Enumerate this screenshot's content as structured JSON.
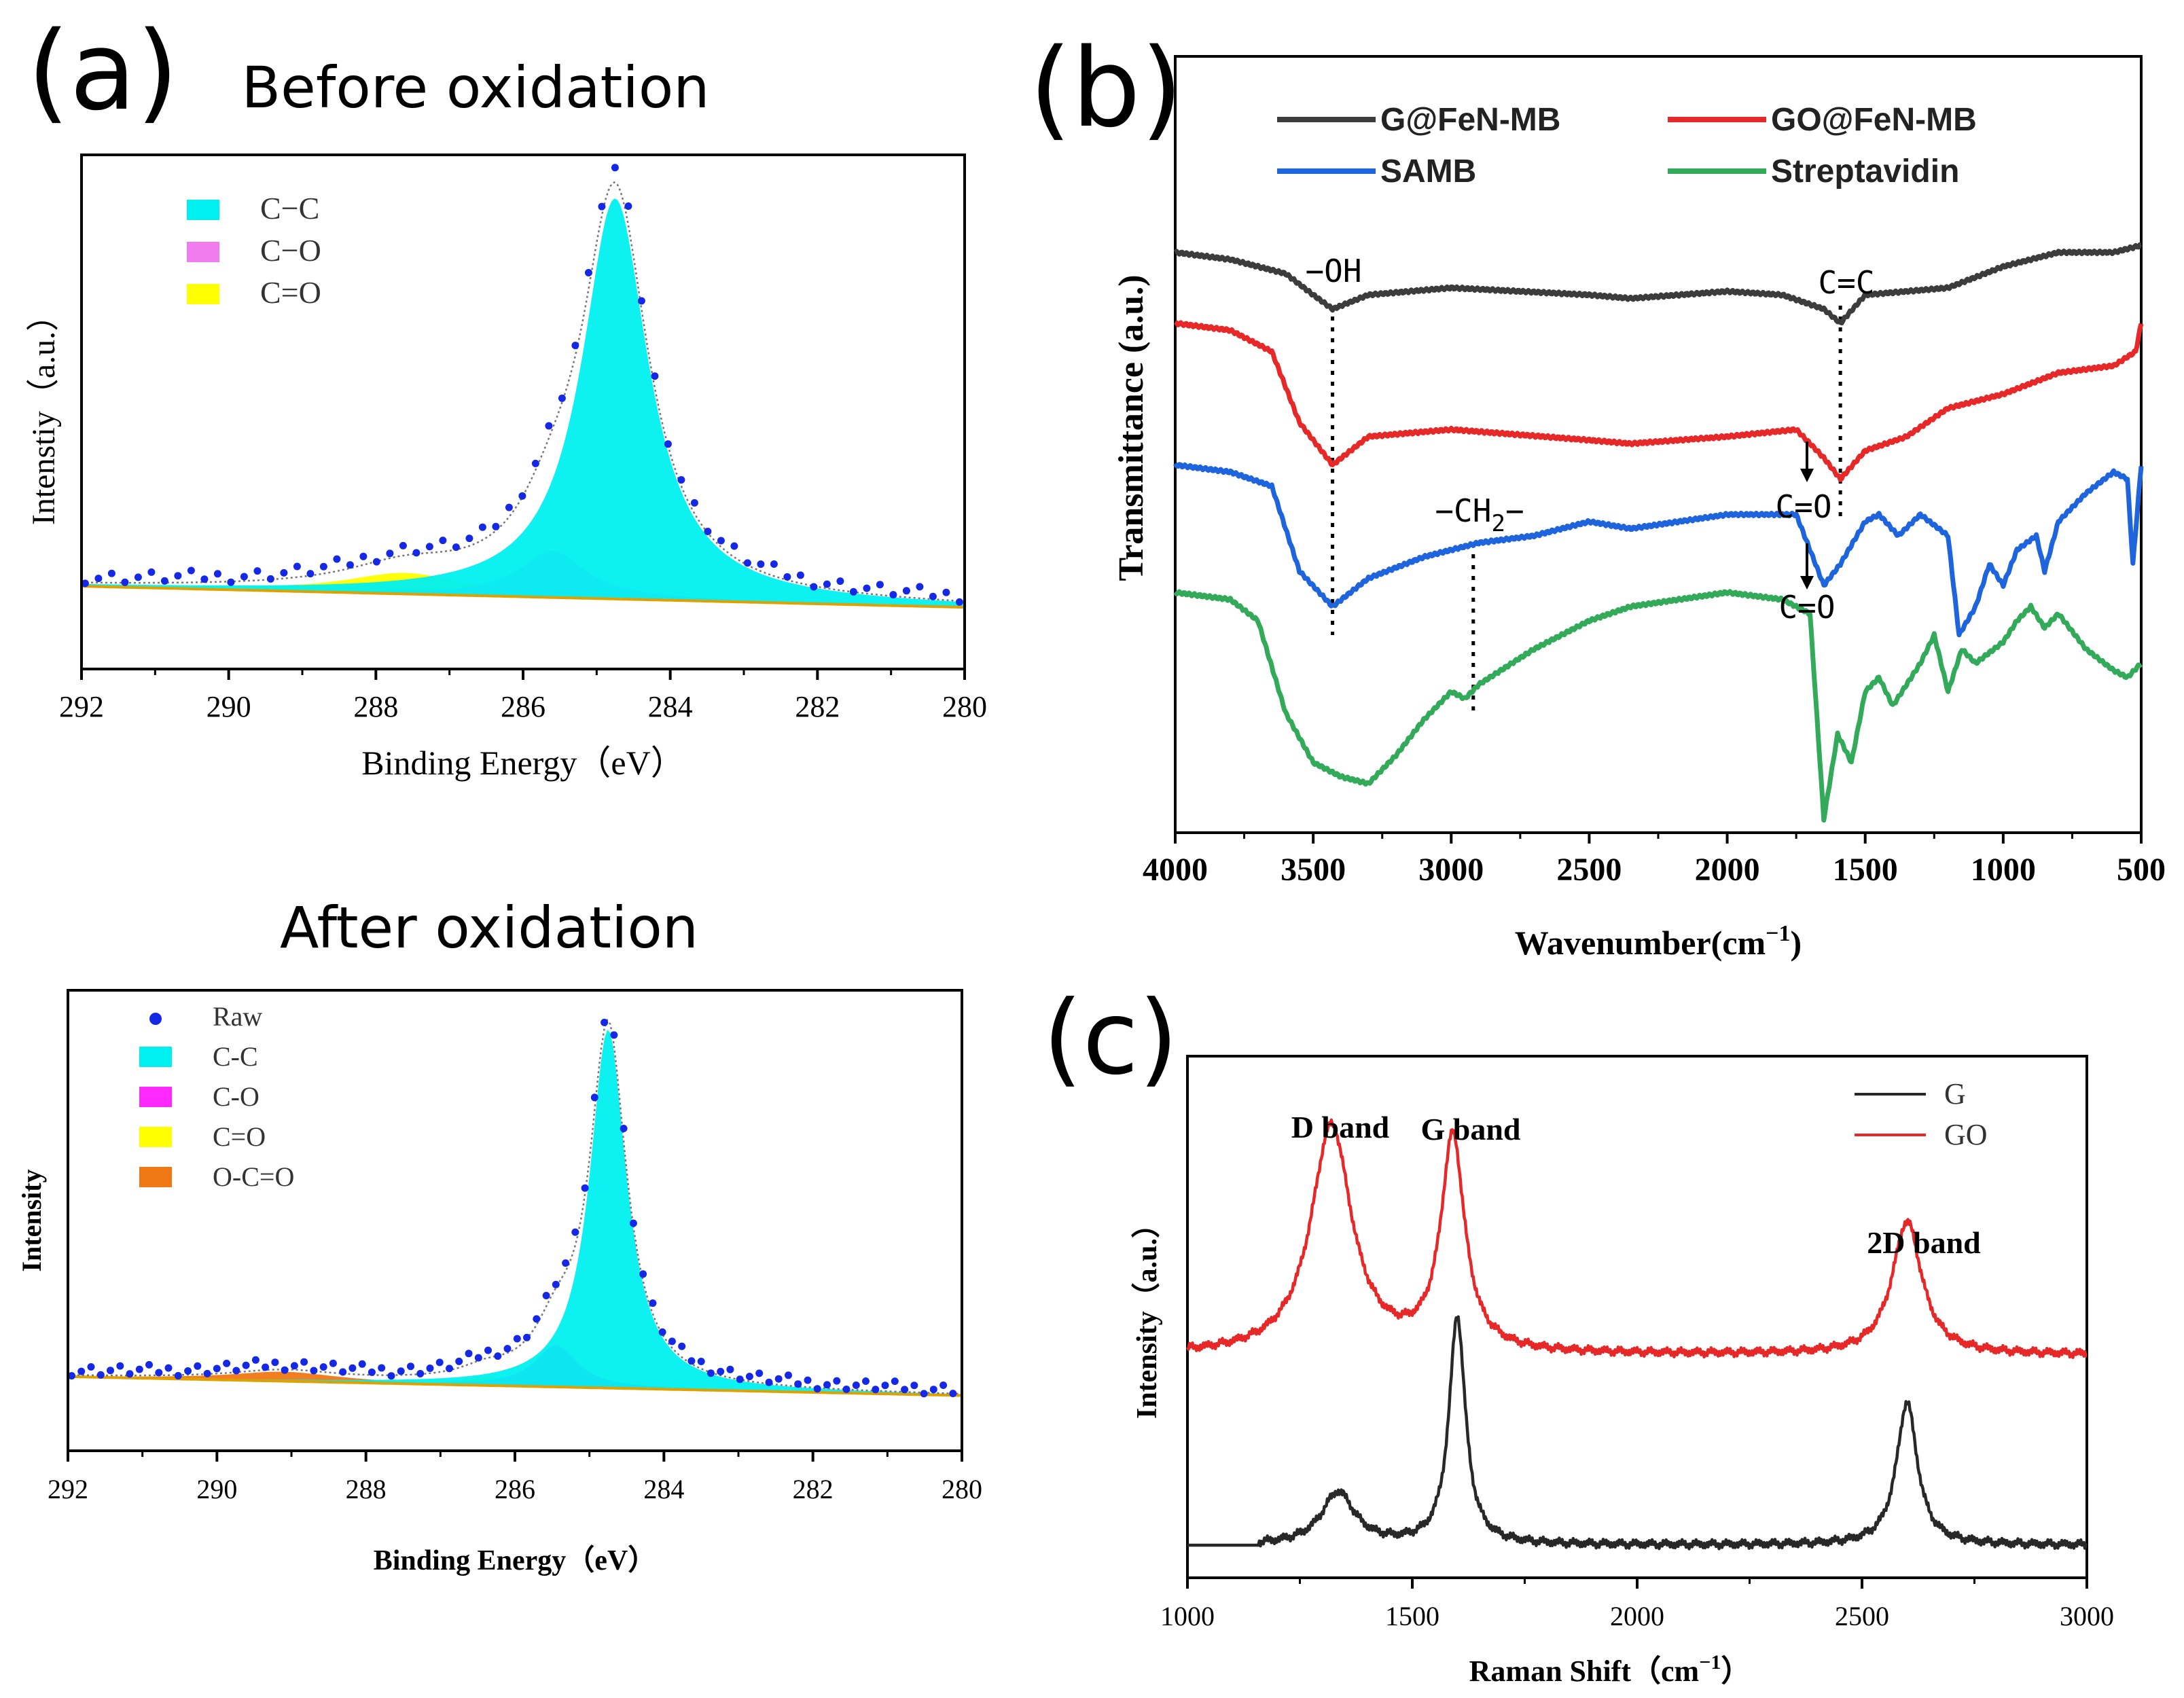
{
  "panel_labels": {
    "a": "(a)",
    "b": "(b)",
    "c": "(c)"
  },
  "colors": {
    "cc": "#00f0f0",
    "co": "#f07cf0",
    "co2": "#ff28ff",
    "ceqo": "#ffff00",
    "occo": "#f07814",
    "raw": "#1428e6",
    "g_fen": "#3c3c3c",
    "go_fen": "#e62828",
    "samb": "#1e64dc",
    "strep": "#32aa5a",
    "raman_g": "#282828",
    "raman_go": "#e62828"
  },
  "chart_data": [
    {
      "id": "xps_before",
      "type": "area",
      "title": "Before oxidation",
      "xlabel": "Binding Energy（eV）",
      "ylabel": "Intenstiy（a.u.）",
      "xlim": [
        292,
        280
      ],
      "xticks": [
        "292",
        "290",
        "288",
        "286",
        "284",
        "282",
        "280"
      ],
      "legend": [
        {
          "label": "C−C",
          "color": "#00f0f0"
        },
        {
          "label": "C−O",
          "color": "#f07cf0"
        },
        {
          "label": "C=O",
          "color": "#ffff00"
        }
      ],
      "baseline": {
        "x": [
          292,
          280
        ],
        "y": [
          0.05,
          0.0
        ]
      },
      "peaks": [
        {
          "name": "C=O",
          "center": 287.6,
          "height": 0.05,
          "width": 1.0
        },
        {
          "name": "C-O",
          "center": 285.6,
          "height": 0.11,
          "width": 0.55
        },
        {
          "name": "C-C",
          "center": 284.75,
          "height": 0.95,
          "width": 0.55
        }
      ],
      "raw_note": "points follow envelope"
    },
    {
      "id": "xps_after",
      "type": "area",
      "title": "After oxidation",
      "xlabel": "Binding Energy（eV）",
      "ylabel": "Intensity",
      "xlim": [
        292,
        280
      ],
      "xticks": [
        "292",
        "290",
        "288",
        "286",
        "284",
        "282",
        "280"
      ],
      "legend": [
        {
          "label": "Raw",
          "color": "#1428e6",
          "marker": "dot"
        },
        {
          "label": "C-C",
          "color": "#00f0f0"
        },
        {
          "label": "C-O",
          "color": "#ff28ff"
        },
        {
          "label": "C=O",
          "color": "#ffff00"
        },
        {
          "label": "O-C=O",
          "color": "#f07814"
        }
      ],
      "baseline": {
        "x": [
          292,
          280
        ],
        "y": [
          0.05,
          0.0
        ]
      },
      "peaks": [
        {
          "name": "O-C=O",
          "center": 289.1,
          "height": 0.025,
          "width": 0.9
        },
        {
          "name": "C=O",
          "center": 286.4,
          "height": 0.025,
          "width": 0.4
        },
        {
          "name": "C-O",
          "center": 285.45,
          "height": 0.11,
          "width": 0.35
        },
        {
          "name": "C-C",
          "center": 284.75,
          "height": 0.95,
          "width": 0.3
        }
      ]
    },
    {
      "id": "ftir",
      "type": "line",
      "xlabel": "Wavenumber(cm",
      "xlabel_sup": "−1",
      "xlabel_end": ")",
      "ylabel": "Transmittance (a.u.)",
      "xlim": [
        4000,
        500
      ],
      "xticks": [
        "4000",
        "3500",
        "3000",
        "2500",
        "2000",
        "1500",
        "1000",
        "500"
      ],
      "legend": [
        {
          "label": "G@FeN-MB",
          "color": "#3c3c3c"
        },
        {
          "label": "GO@FeN-MB",
          "color": "#e62828"
        },
        {
          "label": "SAMB",
          "color": "#1e64dc"
        },
        {
          "label": "Streptavidin",
          "color": "#32aa5a"
        }
      ],
      "annotations": [
        {
          "text": "−OH",
          "x": 3430
        },
        {
          "text": "C=C",
          "x": 1590
        },
        {
          "text": "−CH",
          "sub": "2",
          "tail": "−",
          "x": 2920
        },
        {
          "text": "C=O",
          "x": 1720
        },
        {
          "text": "C=O",
          "x": 1720
        }
      ],
      "series": [
        {
          "name": "G@FeN-MB",
          "x": [
            4000,
            3800,
            3600,
            3500,
            3430,
            3300,
            3000,
            2500,
            2350,
            2000,
            1800,
            1650,
            1590,
            1500,
            1200,
            1000,
            800,
            600,
            500
          ],
          "y": [
            0.8,
            0.79,
            0.77,
            0.74,
            0.72,
            0.74,
            0.75,
            0.74,
            0.735,
            0.745,
            0.74,
            0.72,
            0.7,
            0.74,
            0.75,
            0.78,
            0.8,
            0.8,
            0.81
          ]
        },
        {
          "name": "GO@FeN-MB",
          "x": [
            4000,
            3800,
            3650,
            3550,
            3430,
            3300,
            3000,
            2500,
            2350,
            2000,
            1750,
            1700,
            1650,
            1590,
            1500,
            1350,
            1200,
            1000,
            800,
            600,
            520,
            500
          ],
          "y": [
            0.7,
            0.69,
            0.66,
            0.56,
            0.5,
            0.54,
            0.55,
            0.535,
            0.53,
            0.54,
            0.55,
            0.53,
            0.51,
            0.48,
            0.52,
            0.54,
            0.58,
            0.6,
            0.63,
            0.64,
            0.66,
            0.7
          ]
        },
        {
          "name": "SAMB",
          "x": [
            4000,
            3800,
            3650,
            3550,
            3430,
            3300,
            3100,
            2900,
            2700,
            2500,
            2350,
            2000,
            1750,
            1700,
            1650,
            1590,
            1500,
            1450,
            1380,
            1300,
            1200,
            1160,
            1100,
            1050,
            1000,
            950,
            880,
            850,
            800,
            700,
            600,
            550,
            530,
            500
          ],
          "y": [
            0.5,
            0.49,
            0.47,
            0.35,
            0.3,
            0.34,
            0.37,
            0.39,
            0.4,
            0.42,
            0.41,
            0.43,
            0.43,
            0.38,
            0.33,
            0.36,
            0.42,
            0.43,
            0.4,
            0.43,
            0.4,
            0.26,
            0.3,
            0.36,
            0.33,
            0.38,
            0.4,
            0.35,
            0.42,
            0.46,
            0.49,
            0.48,
            0.36,
            0.5
          ]
        },
        {
          "name": "Streptavidin",
          "x": [
            4000,
            3800,
            3700,
            3600,
            3500,
            3400,
            3300,
            3200,
            3100,
            3000,
            2950,
            2900,
            2700,
            2500,
            2350,
            2000,
            1800,
            1700,
            1650,
            1600,
            1550,
            1500,
            1450,
            1400,
            1300,
            1250,
            1200,
            1150,
            1100,
            1000,
            950,
            900,
            850,
            800,
            700,
            600,
            550,
            500
          ],
          "y": [
            0.32,
            0.31,
            0.28,
            0.15,
            0.08,
            0.06,
            0.05,
            0.09,
            0.14,
            0.18,
            0.17,
            0.19,
            0.24,
            0.28,
            0.3,
            0.32,
            0.31,
            0.29,
            0.0,
            0.12,
            0.08,
            0.18,
            0.2,
            0.16,
            0.22,
            0.26,
            0.18,
            0.24,
            0.22,
            0.25,
            0.28,
            0.3,
            0.27,
            0.29,
            0.24,
            0.21,
            0.2,
            0.22
          ]
        }
      ]
    },
    {
      "id": "raman",
      "type": "line",
      "xlabel": "Raman  Shift（cm",
      "xlabel_sup": "−1",
      "xlabel_end": "）",
      "ylabel": "Intensity（a.u.）",
      "xlim": [
        1000,
        3000
      ],
      "xticks": [
        "1000",
        "1500",
        "2000",
        "2500",
        "3000"
      ],
      "legend": [
        {
          "label": "G",
          "color": "#282828"
        },
        {
          "label": "GO",
          "color": "#e62828"
        }
      ],
      "annotations": [
        {
          "text": "D band",
          "x": 1330
        },
        {
          "text": "G band",
          "x": 1600
        },
        {
          "text": "2D band",
          "x": 2600
        }
      ],
      "series": [
        {
          "name": "G",
          "baseline": 0.0,
          "peaks": [
            {
              "c": 1335,
              "h": 0.11,
              "w": 45
            },
            {
              "c": 1600,
              "h": 0.48,
              "w": 22
            },
            {
              "c": 2600,
              "h": 0.3,
              "w": 28
            }
          ]
        },
        {
          "name": "GO",
          "baseline": 0.4,
          "peaks": [
            {
              "c": 1320,
              "h": 0.48,
              "w": 55
            },
            {
              "c": 1590,
              "h": 0.45,
              "w": 32
            },
            {
              "c": 2600,
              "h": 0.28,
              "w": 40
            }
          ]
        }
      ]
    }
  ]
}
